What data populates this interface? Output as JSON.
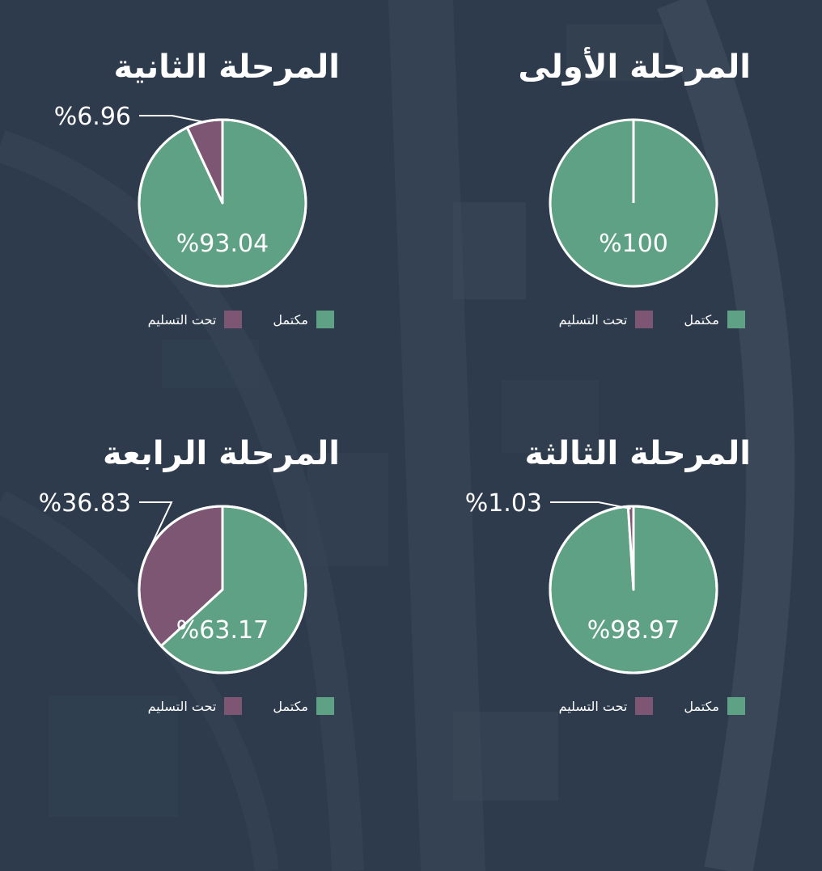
{
  "colors": {
    "complete": "#5fa184",
    "delivery": "#7d5674",
    "background": "#2c3a4b"
  },
  "chart_data": [
    {
      "type": "pie",
      "title": "المرحلة الأولى",
      "categories": [
        "مكتمل",
        "تحت التسليم"
      ],
      "values": [
        100,
        0
      ],
      "labels": {
        "main": "%100",
        "small": ""
      },
      "legend": [
        "مكتمل",
        "تحت التسليم"
      ],
      "legend_position": "bottom"
    },
    {
      "type": "pie",
      "title": "المرحلة الثانية",
      "categories": [
        "مكتمل",
        "تحت التسليم"
      ],
      "values": [
        93.04,
        6.96
      ],
      "labels": {
        "main": "%93.04",
        "small": "%6.96"
      },
      "legend": [
        "مكتمل",
        "تحت التسليم"
      ],
      "legend_position": "bottom"
    },
    {
      "type": "pie",
      "title": "المرحلة الثالثة",
      "categories": [
        "مكتمل",
        "تحت التسليم"
      ],
      "values": [
        98.97,
        1.03
      ],
      "labels": {
        "main": "%98.97",
        "small": "%1.03"
      },
      "legend": [
        "مكتمل",
        "تحت التسليم"
      ],
      "legend_position": "bottom"
    },
    {
      "type": "pie",
      "title": "المرحلة الرابعة",
      "categories": [
        "مكتمل",
        "تحت التسليم"
      ],
      "values": [
        63.17,
        36.83
      ],
      "labels": {
        "main": "%63.17",
        "small": "%36.83"
      },
      "legend": [
        "مكتمل",
        "تحت التسليم"
      ],
      "legend_position": "bottom"
    }
  ]
}
